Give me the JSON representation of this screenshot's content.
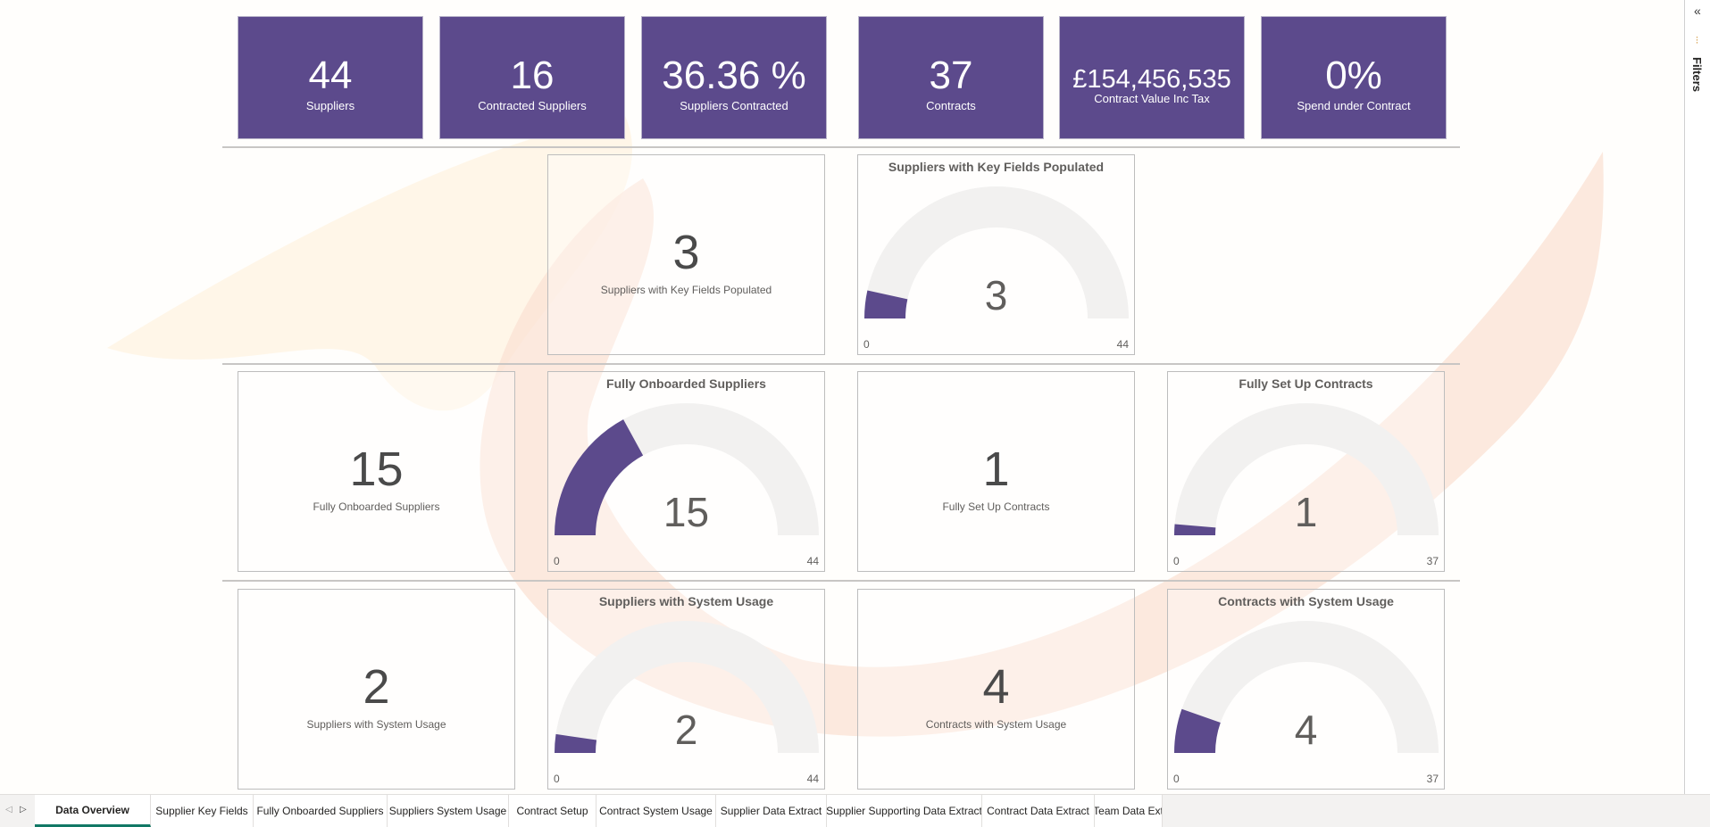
{
  "kpis": [
    {
      "value": "44",
      "label": "Suppliers"
    },
    {
      "value": "16",
      "label": "Contracted Suppliers"
    },
    {
      "value": "36.36 %",
      "label": "Suppliers Contracted"
    },
    {
      "value": "37",
      "label": "Contracts"
    },
    {
      "value": "£154,456,535",
      "label": "Contract Value Inc Tax"
    },
    {
      "value": "0%",
      "label": "Spend under Contract"
    }
  ],
  "cards": {
    "key_fields": {
      "value": "3",
      "label": "Suppliers with Key Fields Populated"
    },
    "onboarded": {
      "value": "15",
      "label": "Fully Onboarded Suppliers"
    },
    "setup": {
      "value": "1",
      "label": "Fully Set Up Contracts"
    },
    "sup_usage": {
      "value": "2",
      "label": "Suppliers with System Usage"
    },
    "con_usage": {
      "value": "4",
      "label": "Contracts with System Usage"
    }
  },
  "gauges": {
    "key_fields": {
      "title": "Suppliers with Key Fields Populated",
      "value": 3,
      "min": 0,
      "max": 44
    },
    "onboarded": {
      "title": "Fully Onboarded Suppliers",
      "value": 15,
      "min": 0,
      "max": 44
    },
    "setup": {
      "title": "Fully Set Up Contracts",
      "value": 1,
      "min": 0,
      "max": 37
    },
    "sup_usage": {
      "title": "Suppliers with System Usage",
      "value": 2,
      "min": 0,
      "max": 44
    },
    "con_usage": {
      "title": "Contracts with System Usage",
      "value": 4,
      "min": 0,
      "max": 37
    }
  },
  "colors": {
    "fill": "#5c4a8c",
    "track": "#f2f1f0"
  },
  "filters": {
    "label": "Filters",
    "collapse_icon": "chevron-left-double",
    "filter_icon": "filter-icon"
  },
  "tabs": [
    "Data Overview",
    "Supplier Key Fields",
    "Fully Onboarded Suppliers",
    "Suppliers System Usage",
    "Contract Setup",
    "Contract System Usage",
    "Supplier Data Extract",
    "Supplier Supporting Data Extract",
    "Contract Data Extract",
    "Team Data Ext"
  ],
  "active_tab": "Data Overview"
}
